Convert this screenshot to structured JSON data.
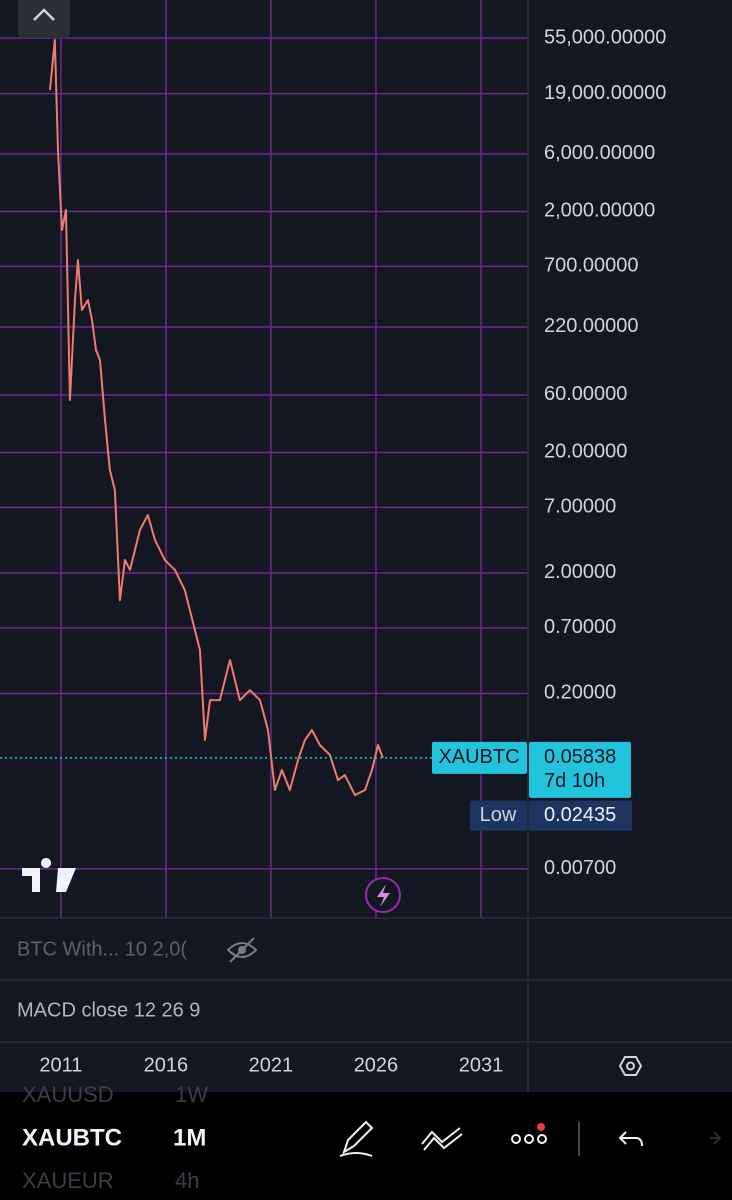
{
  "chart_data": {
    "type": "line",
    "symbol": "XAUBTC",
    "color": "#ef7b70",
    "log_scale": true,
    "grid": true,
    "grid_color": "#6a2a8c",
    "x": [
      2010.48,
      2010.71,
      2010.86,
      2011.05,
      2011.24,
      2011.43,
      2011.67,
      2011.81,
      2012.0,
      2012.29,
      2012.48,
      2012.67,
      2012.86,
      2013.1,
      2013.33,
      2013.57,
      2013.81,
      2014.05,
      2014.29,
      2014.76,
      2015.14,
      2015.48,
      2015.95,
      2016.43,
      2016.9,
      2017.38,
      2017.62,
      2017.86,
      2018.1,
      2018.57,
      2019.05,
      2019.52,
      2020.0,
      2020.48,
      2020.86,
      2021.19,
      2021.52,
      2021.9,
      2022.29,
      2022.62,
      2022.95,
      2023.33,
      2023.81,
      2024.19,
      2024.52,
      2025.0,
      2025.48,
      2025.81,
      2026.1,
      2026.33
    ],
    "values": [
      20350,
      52900,
      6470,
      1403,
      2057,
      54.5,
      368,
      791,
      304,
      368,
      251,
      142,
      117,
      37.2,
      14.3,
      9.76,
      1.19,
      2.56,
      2.12,
      4.54,
      6.05,
      3.75,
      2.56,
      2.12,
      1.44,
      0.672,
      0.459,
      0.0821,
      0.176,
      0.176,
      0.379,
      0.176,
      0.213,
      0.176,
      0.0994,
      0.0316,
      0.0463,
      0.0316,
      0.056,
      0.0821,
      0.0994,
      0.0747,
      0.0617,
      0.0382,
      0.0421,
      0.0287,
      0.0316,
      0.0463,
      0.0747,
      0.05838
    ],
    "xlim": [
      2008.1,
      2033.24
    ],
    "xticks": [
      2011,
      2016,
      2021,
      2026,
      2031
    ],
    "ylim": [
      0.00274,
      113700
    ],
    "yticks": [
      {
        "value": 55000,
        "label": "55,000.00000"
      },
      {
        "value": 19000,
        "label": "19,000.00000"
      },
      {
        "value": 6000,
        "label": "6,000.00000"
      },
      {
        "value": 2000,
        "label": "2,000.00000"
      },
      {
        "value": 700,
        "label": "700.00000"
      },
      {
        "value": 220,
        "label": "220.00000"
      },
      {
        "value": 60,
        "label": "60.00000"
      },
      {
        "value": 20,
        "label": "20.00000"
      },
      {
        "value": 7,
        "label": "7.00000"
      },
      {
        "value": 2,
        "label": "2.00000"
      },
      {
        "value": 0.7,
        "label": "0.70000"
      },
      {
        "value": 0.2,
        "label": "0.20000"
      },
      {
        "value": 0.007,
        "label": "0.00700"
      }
    ],
    "last_price": 0.05838,
    "countdown": "7d 10h",
    "low_label": "Low",
    "low": 0.02435
  },
  "indicators": [
    "BTC With... 10 2,0(",
    "MACD close 12 26 9"
  ],
  "toolbar": {
    "symbol": "XAUBTC",
    "interval": "1M",
    "prev_symbol": "XAUUSD",
    "prev_interval": "1W",
    "next_symbol": "XAUEUR",
    "next_interval": "4h"
  }
}
